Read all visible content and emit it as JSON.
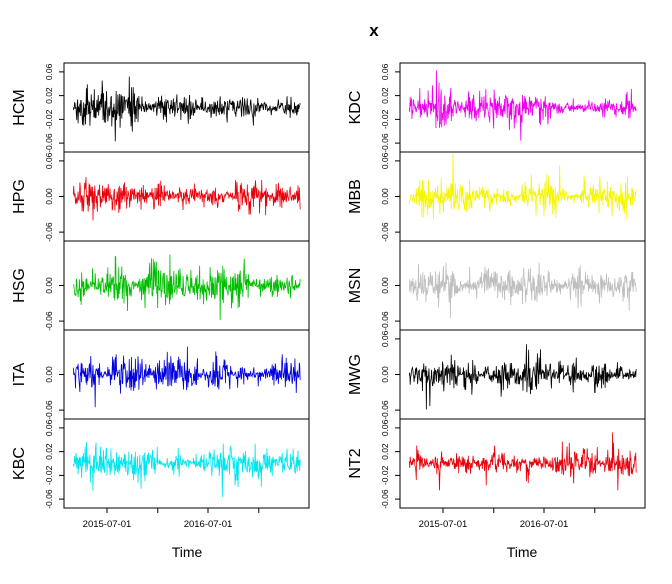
{
  "chart_data": {
    "type": "line",
    "title": "x",
    "xlabel": "Time",
    "x_range": [
      "2015-03-01",
      "2017-05-31"
    ],
    "x_ticks": [
      "2015-07-01",
      "2016-07-01"
    ],
    "grid": false,
    "columns": [
      {
        "panels": [
          {
            "name": "HCM",
            "color": "#000000",
            "ylim": [
              -0.075,
              0.075
            ],
            "y_ticks": [
              "0.06",
              "0.02",
              "-0.02",
              "-0.06"
            ],
            "amplitude": 0.045
          },
          {
            "name": "HPG",
            "color": "#e8000b",
            "ylim": [
              -0.075,
              0.075
            ],
            "y_ticks": [
              "0.06",
              "0.00",
              "-0.06"
            ],
            "amplitude": 0.05
          },
          {
            "name": "HSG",
            "color": "#00bd00",
            "ylim": [
              -0.075,
              0.075
            ],
            "y_ticks": [
              "0.00",
              "-0.06"
            ],
            "amplitude": 0.055
          },
          {
            "name": "ITA",
            "color": "#0000e0",
            "ylim": [
              -0.075,
              0.075
            ],
            "y_ticks": [
              "0.00",
              "-0.06"
            ],
            "amplitude": 0.055
          },
          {
            "name": "KBC",
            "color": "#00e5ee",
            "ylim": [
              -0.075,
              0.075
            ],
            "y_ticks": [
              "0.06",
              "0.02",
              "-0.02",
              "-0.06"
            ],
            "amplitude": 0.04
          }
        ]
      },
      {
        "panels": [
          {
            "name": "KDC",
            "color": "#ee00ee",
            "ylim": [
              -0.075,
              0.075
            ],
            "y_ticks": [
              "0.06",
              "0.02",
              "-0.02",
              "-0.06"
            ],
            "amplitude": 0.045
          },
          {
            "name": "MBB",
            "color": "#f5f500",
            "ylim": [
              -0.075,
              0.075
            ],
            "y_ticks": [
              "0.06",
              "0.00",
              "-0.06"
            ],
            "amplitude": 0.04
          },
          {
            "name": "MSN",
            "color": "#bebebe",
            "ylim": [
              -0.075,
              0.075
            ],
            "y_ticks": [
              "0.00",
              "-0.06"
            ],
            "amplitude": 0.05
          },
          {
            "name": "MWG",
            "color": "#000000",
            "ylim": [
              -0.075,
              0.075
            ],
            "y_ticks": [
              "0.06",
              "0.00",
              "-0.06"
            ],
            "amplitude": 0.045
          },
          {
            "name": "NT2",
            "color": "#e8000b",
            "ylim": [
              -0.075,
              0.075
            ],
            "y_ticks": [
              "0.06",
              "0.02",
              "-0.02",
              "-0.06"
            ],
            "amplitude": 0.04
          }
        ]
      }
    ]
  }
}
